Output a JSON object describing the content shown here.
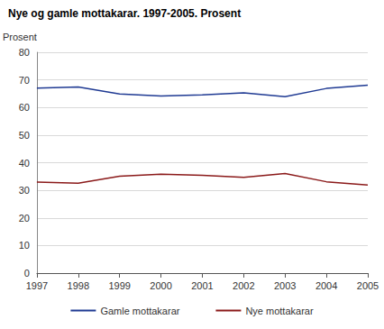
{
  "chart_data": {
    "type": "line",
    "title": "Nye og gamle mottakarar. 1997-2005. Prosent",
    "y_label": "Prosent",
    "categories": [
      "1997",
      "1998",
      "1999",
      "2000",
      "2001",
      "2002",
      "2003",
      "2004",
      "2005"
    ],
    "series": [
      {
        "name": "Gamle mottakarar",
        "color": "#1f3a93",
        "values": [
          67.0,
          67.4,
          64.9,
          64.2,
          64.6,
          65.3,
          63.9,
          66.9,
          68.1
        ]
      },
      {
        "name": "Nye mottakarar",
        "color": "#8b1a1a",
        "values": [
          33.0,
          32.6,
          35.1,
          35.8,
          35.4,
          34.7,
          36.1,
          33.1,
          31.9
        ]
      }
    ],
    "ylim": [
      0,
      80
    ],
    "yticks": [
      0,
      10,
      20,
      30,
      40,
      50,
      60,
      70,
      80
    ],
    "grid": true,
    "legend": "bottom"
  }
}
